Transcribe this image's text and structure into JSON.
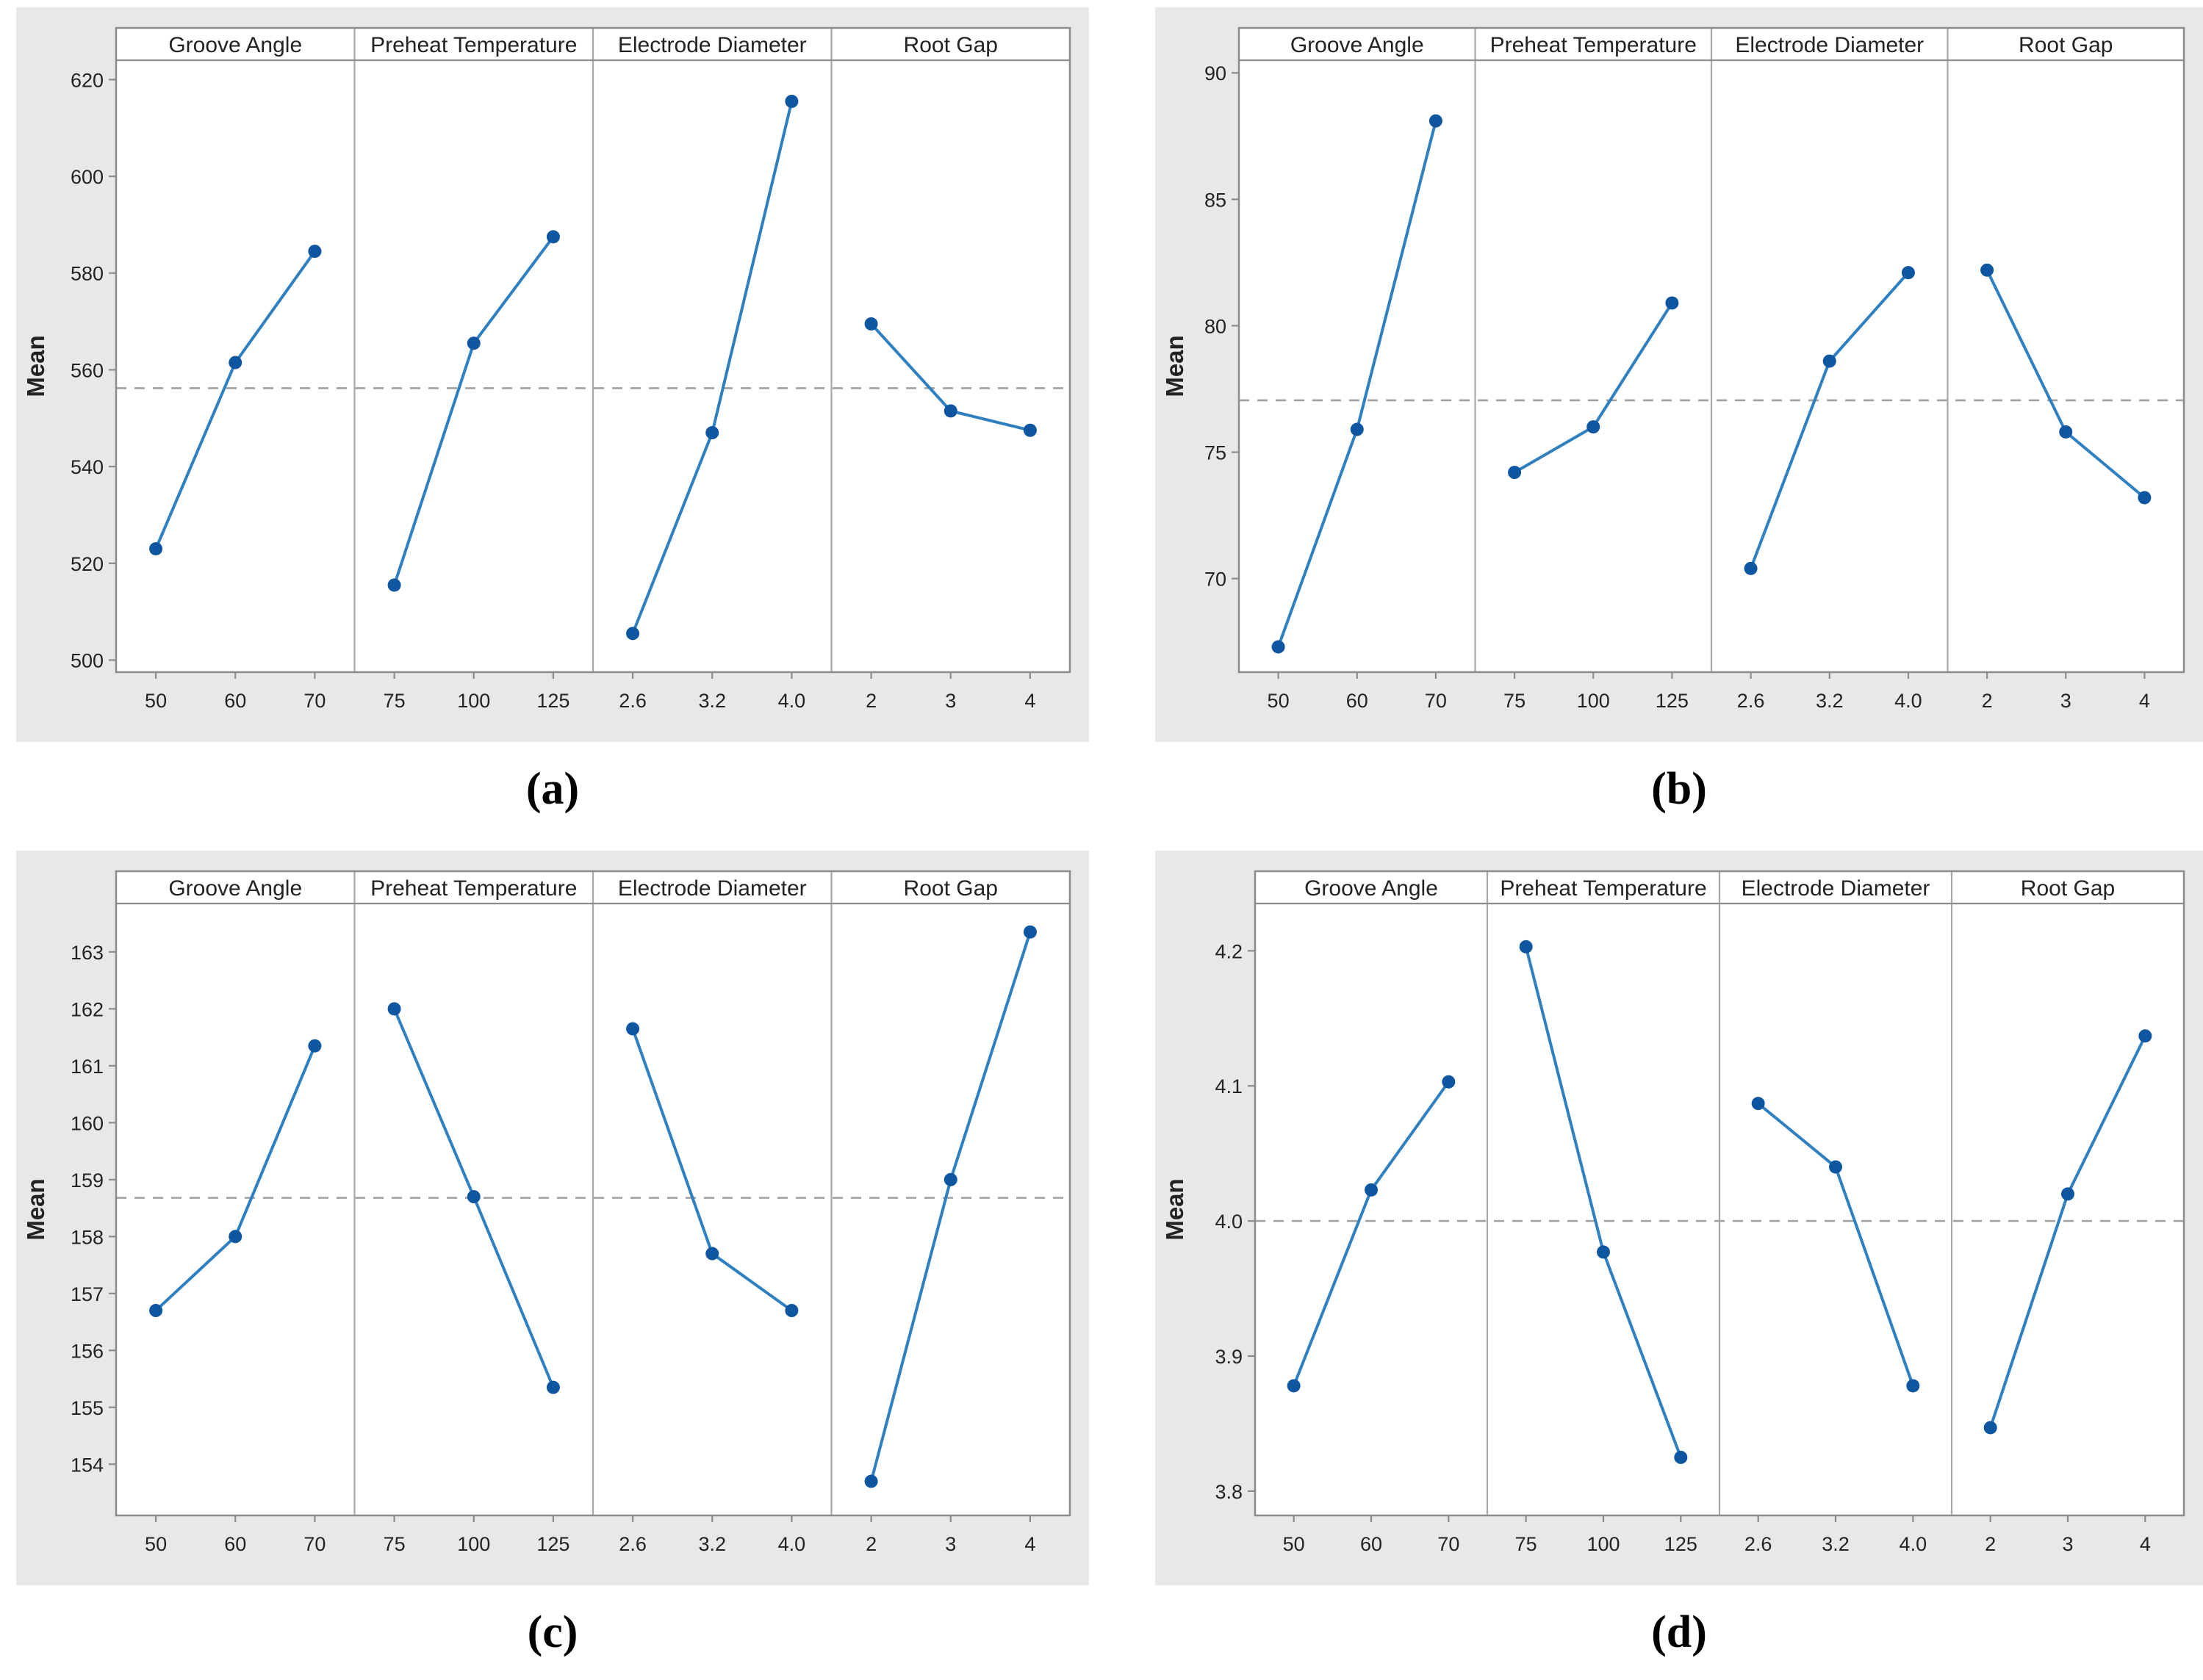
{
  "style": {
    "box_background": "#e7e8e8",
    "plot_background": "#ffffff",
    "frame_color": "#8c8c8c",
    "divider_color": "#a8a8a8",
    "reference_line_color": "#a0a0a0",
    "line_color": "#2f80c0",
    "marker_color": "#0e56a0",
    "text_color": "#232323",
    "caption_color": "#000000"
  },
  "chart_data": [
    {
      "id": "a",
      "caption": "(a)",
      "type": "line",
      "ylabel": "Mean",
      "grid": false,
      "legend": "none",
      "yticks": [
        "500",
        "520",
        "540",
        "560",
        "580",
        "600",
        "620"
      ],
      "ylim": [
        497.5,
        624
      ],
      "reference_line": 556.2,
      "panels": [
        {
          "title": "Groove Angle",
          "categories": [
            "50",
            "60",
            "70"
          ],
          "values": [
            523.0,
            561.5,
            584.5
          ]
        },
        {
          "title": "Preheat Temperature",
          "categories": [
            "75",
            "100",
            "125"
          ],
          "values": [
            515.5,
            565.5,
            587.5
          ]
        },
        {
          "title": "Electrode Diameter",
          "categories": [
            "2.6",
            "3.2",
            "4.0"
          ],
          "values": [
            505.5,
            547.0,
            615.5
          ]
        },
        {
          "title": "Root Gap",
          "categories": [
            "2",
            "3",
            "4"
          ],
          "values": [
            569.5,
            551.5,
            547.5
          ]
        }
      ]
    },
    {
      "id": "b",
      "caption": "(b)",
      "type": "line",
      "ylabel": "Mean",
      "grid": false,
      "legend": "none",
      "yticks": [
        "70",
        "75",
        "80",
        "85",
        "90"
      ],
      "ylim": [
        66.3,
        90.5
      ],
      "reference_line": 77.05,
      "panels": [
        {
          "title": "Groove Angle",
          "categories": [
            "50",
            "60",
            "70"
          ],
          "values": [
            67.3,
            75.9,
            88.1
          ]
        },
        {
          "title": "Preheat Temperature",
          "categories": [
            "75",
            "100",
            "125"
          ],
          "values": [
            74.2,
            76.0,
            80.9
          ]
        },
        {
          "title": "Electrode Diameter",
          "categories": [
            "2.6",
            "3.2",
            "4.0"
          ],
          "values": [
            70.4,
            78.6,
            82.1
          ]
        },
        {
          "title": "Root Gap",
          "categories": [
            "2",
            "3",
            "4"
          ],
          "values": [
            82.2,
            75.8,
            73.2
          ]
        }
      ]
    },
    {
      "id": "c",
      "caption": "(c)",
      "type": "line",
      "ylabel": "Mean",
      "grid": false,
      "legend": "none",
      "yticks": [
        "154",
        "155",
        "156",
        "157",
        "158",
        "159",
        "160",
        "161",
        "162",
        "163"
      ],
      "ylim": [
        153.1,
        163.85
      ],
      "reference_line": 158.68,
      "panels": [
        {
          "title": "Groove Angle",
          "categories": [
            "50",
            "60",
            "70"
          ],
          "values": [
            156.7,
            158.0,
            161.35
          ]
        },
        {
          "title": "Preheat Temperature",
          "categories": [
            "75",
            "100",
            "125"
          ],
          "values": [
            162.0,
            158.7,
            155.35
          ]
        },
        {
          "title": "Electrode Diameter",
          "categories": [
            "2.6",
            "3.2",
            "4.0"
          ],
          "values": [
            161.65,
            157.7,
            156.7
          ]
        },
        {
          "title": "Root Gap",
          "categories": [
            "2",
            "3",
            "4"
          ],
          "values": [
            153.7,
            159.0,
            163.35
          ]
        }
      ]
    },
    {
      "id": "d",
      "caption": "(d)",
      "type": "line",
      "ylabel": "Mean",
      "grid": false,
      "legend": "none",
      "yticks": [
        "3.8",
        "3.9",
        "4.0",
        "4.1",
        "4.2"
      ],
      "ylim": [
        3.782,
        4.235
      ],
      "reference_line": 4.0,
      "panels": [
        {
          "title": "Groove Angle",
          "categories": [
            "50",
            "60",
            "70"
          ],
          "values": [
            3.878,
            4.023,
            4.103
          ]
        },
        {
          "title": "Preheat Temperature",
          "categories": [
            "75",
            "100",
            "125"
          ],
          "values": [
            4.203,
            3.977,
            3.825
          ]
        },
        {
          "title": "Electrode Diameter",
          "categories": [
            "2.6",
            "3.2",
            "4.0"
          ],
          "values": [
            4.087,
            4.04,
            3.878
          ]
        },
        {
          "title": "Root Gap",
          "categories": [
            "2",
            "3",
            "4"
          ],
          "values": [
            3.847,
            4.02,
            4.137
          ]
        }
      ]
    }
  ]
}
